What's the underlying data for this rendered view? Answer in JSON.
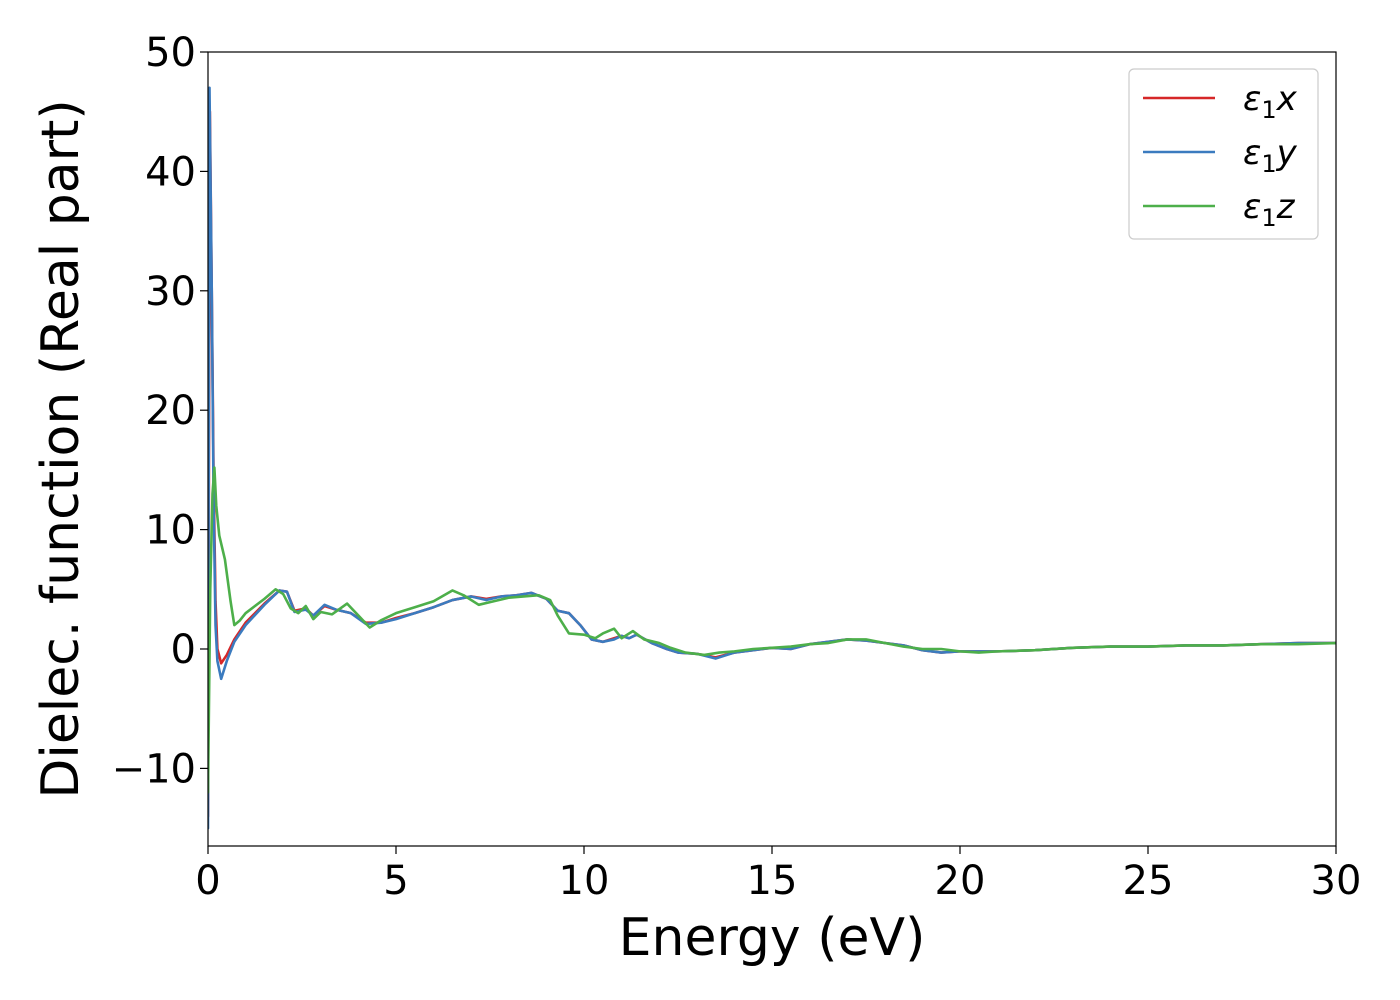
{
  "chart_data": {
    "type": "line",
    "title": "",
    "xlabel": "Energy (eV)",
    "ylabel": "Dielec. function (Real part)",
    "xlim": [
      0,
      30
    ],
    "ylim": [
      -16.5,
      50
    ],
    "xticks": [
      0,
      5,
      10,
      15,
      20,
      25,
      30
    ],
    "xtick_labels": [
      "0",
      "5",
      "10",
      "15",
      "20",
      "25",
      "30"
    ],
    "yticks": [
      -10,
      0,
      10,
      20,
      30,
      40,
      50
    ],
    "ytick_labels": [
      "−10",
      "0",
      "10",
      "20",
      "30",
      "40",
      "50"
    ],
    "grid": false,
    "legend_position": "top-right",
    "series": [
      {
        "name": "ε₁x",
        "legend_base": "ε",
        "legend_sub": "1",
        "legend_var": "x",
        "color": "#d62728",
        "points": [
          [
            0.0,
            -14
          ],
          [
            0.05,
            45
          ],
          [
            0.1,
            30
          ],
          [
            0.15,
            14
          ],
          [
            0.2,
            4
          ],
          [
            0.25,
            0
          ],
          [
            0.35,
            -1.2
          ],
          [
            0.5,
            -0.5
          ],
          [
            0.7,
            0.8
          ],
          [
            1.0,
            2.2
          ],
          [
            1.5,
            3.8
          ],
          [
            1.9,
            4.9
          ],
          [
            2.1,
            4.8
          ],
          [
            2.3,
            3.2
          ],
          [
            2.6,
            3.4
          ],
          [
            2.8,
            2.8
          ],
          [
            3.1,
            3.6
          ],
          [
            3.4,
            3.3
          ],
          [
            3.8,
            3.0
          ],
          [
            4.2,
            2.2
          ],
          [
            4.6,
            2.2
          ],
          [
            5.0,
            2.6
          ],
          [
            5.5,
            3.0
          ],
          [
            6.0,
            3.5
          ],
          [
            6.5,
            4.1
          ],
          [
            7.0,
            4.4
          ],
          [
            7.4,
            4.2
          ],
          [
            7.8,
            4.4
          ],
          [
            8.2,
            4.5
          ],
          [
            8.6,
            4.7
          ],
          [
            9.0,
            4.2
          ],
          [
            9.3,
            3.2
          ],
          [
            9.6,
            3.0
          ],
          [
            9.9,
            2.0
          ],
          [
            10.2,
            0.8
          ],
          [
            10.5,
            0.6
          ],
          [
            10.8,
            0.9
          ],
          [
            11.0,
            1.1
          ],
          [
            11.2,
            0.9
          ],
          [
            11.4,
            1.2
          ],
          [
            11.8,
            0.5
          ],
          [
            12.2,
            0.0
          ],
          [
            12.5,
            -0.3
          ],
          [
            13.0,
            -0.4
          ],
          [
            13.5,
            -0.7
          ],
          [
            14.0,
            -0.3
          ],
          [
            14.5,
            -0.1
          ],
          [
            15.0,
            0.1
          ],
          [
            15.5,
            0.0
          ],
          [
            16.0,
            0.4
          ],
          [
            16.5,
            0.6
          ],
          [
            17.0,
            0.8
          ],
          [
            17.5,
            0.7
          ],
          [
            18.0,
            0.5
          ],
          [
            18.5,
            0.3
          ],
          [
            19.0,
            -0.1
          ],
          [
            19.5,
            -0.3
          ],
          [
            20.0,
            -0.2
          ],
          [
            20.5,
            -0.2
          ],
          [
            21.0,
            -0.2
          ],
          [
            22.0,
            -0.1
          ],
          [
            23.0,
            0.1
          ],
          [
            24.0,
            0.2
          ],
          [
            25.0,
            0.2
          ],
          [
            26.0,
            0.3
          ],
          [
            27.0,
            0.3
          ],
          [
            28.0,
            0.4
          ],
          [
            29.0,
            0.5
          ],
          [
            30.0,
            0.5
          ]
        ]
      },
      {
        "name": "ε₁y",
        "legend_base": "ε",
        "legend_sub": "1",
        "legend_var": "y",
        "color": "#3b7bbf",
        "points": [
          [
            0.0,
            -15
          ],
          [
            0.04,
            47
          ],
          [
            0.1,
            30
          ],
          [
            0.15,
            12
          ],
          [
            0.2,
            2
          ],
          [
            0.25,
            -1
          ],
          [
            0.35,
            -2.5
          ],
          [
            0.5,
            -1.0
          ],
          [
            0.7,
            0.6
          ],
          [
            1.0,
            2.0
          ],
          [
            1.5,
            3.7
          ],
          [
            1.9,
            4.9
          ],
          [
            2.1,
            4.8
          ],
          [
            2.3,
            3.1
          ],
          [
            2.6,
            3.3
          ],
          [
            2.8,
            2.8
          ],
          [
            3.1,
            3.7
          ],
          [
            3.4,
            3.3
          ],
          [
            3.8,
            3.0
          ],
          [
            4.2,
            2.1
          ],
          [
            4.6,
            2.2
          ],
          [
            5.0,
            2.5
          ],
          [
            5.5,
            3.0
          ],
          [
            6.0,
            3.5
          ],
          [
            6.5,
            4.1
          ],
          [
            7.0,
            4.4
          ],
          [
            7.4,
            4.1
          ],
          [
            7.8,
            4.4
          ],
          [
            8.2,
            4.5
          ],
          [
            8.6,
            4.7
          ],
          [
            9.0,
            4.2
          ],
          [
            9.3,
            3.2
          ],
          [
            9.6,
            3.0
          ],
          [
            9.9,
            2.0
          ],
          [
            10.2,
            0.8
          ],
          [
            10.5,
            0.6
          ],
          [
            10.8,
            0.8
          ],
          [
            11.0,
            1.1
          ],
          [
            11.2,
            0.9
          ],
          [
            11.4,
            1.2
          ],
          [
            11.8,
            0.5
          ],
          [
            12.2,
            0.0
          ],
          [
            12.5,
            -0.3
          ],
          [
            13.0,
            -0.4
          ],
          [
            13.5,
            -0.8
          ],
          [
            14.0,
            -0.3
          ],
          [
            14.5,
            -0.1
          ],
          [
            15.0,
            0.1
          ],
          [
            15.5,
            0.0
          ],
          [
            16.0,
            0.4
          ],
          [
            16.5,
            0.6
          ],
          [
            17.0,
            0.8
          ],
          [
            17.5,
            0.7
          ],
          [
            18.0,
            0.5
          ],
          [
            18.5,
            0.3
          ],
          [
            19.0,
            -0.1
          ],
          [
            19.5,
            -0.3
          ],
          [
            20.0,
            -0.2
          ],
          [
            20.5,
            -0.2
          ],
          [
            21.0,
            -0.2
          ],
          [
            22.0,
            -0.1
          ],
          [
            23.0,
            0.1
          ],
          [
            24.0,
            0.2
          ],
          [
            25.0,
            0.2
          ],
          [
            26.0,
            0.3
          ],
          [
            27.0,
            0.3
          ],
          [
            28.0,
            0.4
          ],
          [
            29.0,
            0.5
          ],
          [
            30.0,
            0.5
          ]
        ]
      },
      {
        "name": "ε₁z",
        "legend_base": "ε",
        "legend_sub": "1",
        "legend_var": "z",
        "color": "#4daf4a",
        "points": [
          [
            0.0,
            -12
          ],
          [
            0.06,
            5
          ],
          [
            0.12,
            13
          ],
          [
            0.17,
            15.2
          ],
          [
            0.22,
            12
          ],
          [
            0.3,
            9.5
          ],
          [
            0.45,
            7.5
          ],
          [
            0.6,
            4
          ],
          [
            0.7,
            2.0
          ],
          [
            0.85,
            2.4
          ],
          [
            1.0,
            3.0
          ],
          [
            1.5,
            4.2
          ],
          [
            1.8,
            5.0
          ],
          [
            2.0,
            4.6
          ],
          [
            2.2,
            3.4
          ],
          [
            2.4,
            3.0
          ],
          [
            2.6,
            3.6
          ],
          [
            2.8,
            2.5
          ],
          [
            3.0,
            3.1
          ],
          [
            3.3,
            2.9
          ],
          [
            3.7,
            3.8
          ],
          [
            4.0,
            2.8
          ],
          [
            4.3,
            1.8
          ],
          [
            4.6,
            2.4
          ],
          [
            5.0,
            3.0
          ],
          [
            5.5,
            3.5
          ],
          [
            6.0,
            4.0
          ],
          [
            6.5,
            4.9
          ],
          [
            6.8,
            4.5
          ],
          [
            7.2,
            3.7
          ],
          [
            7.6,
            4.0
          ],
          [
            8.0,
            4.3
          ],
          [
            8.4,
            4.4
          ],
          [
            8.8,
            4.5
          ],
          [
            9.1,
            4.1
          ],
          [
            9.3,
            2.8
          ],
          [
            9.6,
            1.3
          ],
          [
            10.0,
            1.2
          ],
          [
            10.3,
            0.9
          ],
          [
            10.5,
            1.3
          ],
          [
            10.8,
            1.7
          ],
          [
            11.0,
            0.9
          ],
          [
            11.3,
            1.5
          ],
          [
            11.6,
            0.8
          ],
          [
            12.0,
            0.5
          ],
          [
            12.3,
            0.1
          ],
          [
            12.7,
            -0.3
          ],
          [
            13.2,
            -0.5
          ],
          [
            13.6,
            -0.3
          ],
          [
            14.0,
            -0.2
          ],
          [
            14.5,
            0.0
          ],
          [
            15.0,
            0.1
          ],
          [
            15.5,
            0.2
          ],
          [
            16.0,
            0.4
          ],
          [
            16.5,
            0.5
          ],
          [
            17.0,
            0.8
          ],
          [
            17.5,
            0.8
          ],
          [
            18.0,
            0.5
          ],
          [
            18.5,
            0.2
          ],
          [
            19.0,
            0.0
          ],
          [
            19.5,
            0.0
          ],
          [
            20.0,
            -0.2
          ],
          [
            20.5,
            -0.3
          ],
          [
            21.0,
            -0.2
          ],
          [
            22.0,
            -0.1
          ],
          [
            23.0,
            0.1
          ],
          [
            24.0,
            0.2
          ],
          [
            25.0,
            0.2
          ],
          [
            26.0,
            0.3
          ],
          [
            27.0,
            0.3
          ],
          [
            28.0,
            0.4
          ],
          [
            29.0,
            0.4
          ],
          [
            30.0,
            0.5
          ]
        ]
      }
    ]
  }
}
